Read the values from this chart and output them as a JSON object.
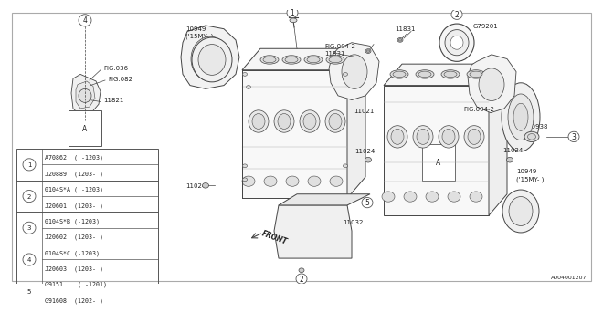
{
  "bg_color": "#ffffff",
  "border_color": "#aaaaaa",
  "line_color": "#444444",
  "text_color": "#222222",
  "table_items": [
    {
      "num": "1",
      "rows": [
        "A70862  ( -1203)",
        "J20889  (1203- )"
      ]
    },
    {
      "num": "2",
      "rows": [
        "0104S*A ( -1203)",
        "J20601  (1203- )"
      ]
    },
    {
      "num": "3",
      "rows": [
        "0104S*B (-1203)",
        "J20602  (1203- )"
      ]
    },
    {
      "num": "4",
      "rows": [
        "0104S*C (-1203)",
        "J20603  (1203- )"
      ]
    },
    {
      "num": "5",
      "rows": [
        "G9151    ( -1201)",
        "G91608  (1202- )"
      ]
    }
  ],
  "footnote": "A004001207"
}
